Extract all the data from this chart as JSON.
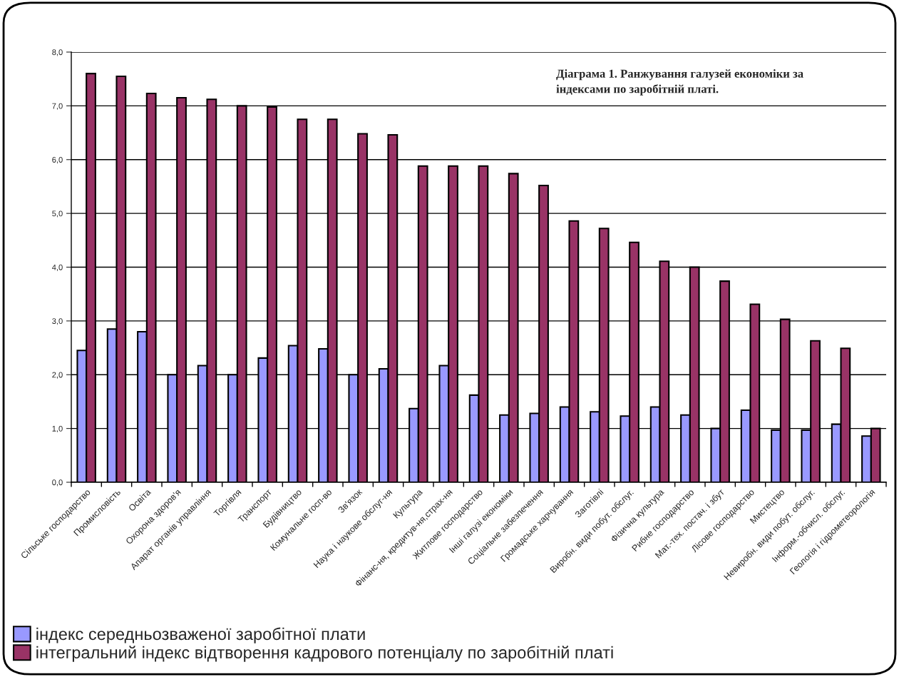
{
  "chart_data": {
    "type": "bar",
    "title": "Діаграма 1. Ранжування галузей економіки за індексами по заробітній платі.",
    "categories": [
      "Сільське господарство",
      "Промисловість",
      "Освіта",
      "Охорона здоров'я",
      "Апарат органів управління",
      "Торгівля",
      "Транспорт",
      "Будівництво",
      "Комунальне госп-во",
      "Зв'язок",
      "Наука і наукове обслуг-ня",
      "Культура",
      "Фінанс-ня, кредитув-ня,страх-ня",
      "Житлове господарство",
      "Інші галузі економіки",
      "Соціальне забезпечення",
      "Громадське харчування",
      "Заготівлі",
      "Виробн. види побут. обслуг.",
      "Фізична культура",
      "Рибне господарство",
      "Мат.-тех. постач. і збут",
      "Лісове господарство",
      "Мистецтво",
      "Невиробн. види побут. обслуг.",
      "Інформ.-обчисл. обслуг.",
      "Геологія і гідрометеорологія"
    ],
    "series": [
      {
        "name": "індекс середньозваженої заробітної плати",
        "color": "#9999ff",
        "values": [
          2.45,
          2.85,
          2.8,
          2.0,
          2.17,
          2.0,
          2.31,
          2.54,
          2.48,
          2.0,
          2.11,
          1.37,
          2.17,
          1.62,
          1.25,
          1.28,
          1.4,
          1.31,
          1.23,
          1.4,
          1.25,
          1.0,
          1.34,
          0.97,
          0.97,
          1.08,
          0.86
        ]
      },
      {
        "name": "інтегральний індекс відтворення кадрового потенціалу по заробітній платі",
        "color": "#993366",
        "values": [
          7.6,
          7.55,
          7.23,
          7.15,
          7.12,
          7.0,
          6.98,
          6.75,
          6.75,
          6.48,
          6.46,
          5.88,
          5.88,
          5.88,
          5.74,
          5.52,
          4.86,
          4.72,
          4.46,
          4.11,
          4.0,
          3.74,
          3.31,
          3.03,
          2.63,
          2.49,
          1.0
        ]
      }
    ],
    "ylim": [
      0,
      8
    ],
    "yticks": [
      {
        "value": 0,
        "label": "0,0"
      },
      {
        "value": 1,
        "label": "1,0"
      },
      {
        "value": 2,
        "label": "2,0"
      },
      {
        "value": 3,
        "label": "3,0"
      },
      {
        "value": 4,
        "label": "4,0"
      },
      {
        "value": 5,
        "label": "5,0"
      },
      {
        "value": 6,
        "label": "6,0"
      },
      {
        "value": 7,
        "label": "7,0"
      },
      {
        "value": 8,
        "label": "8,0"
      }
    ],
    "grid": "y",
    "legend": "bottom left"
  }
}
